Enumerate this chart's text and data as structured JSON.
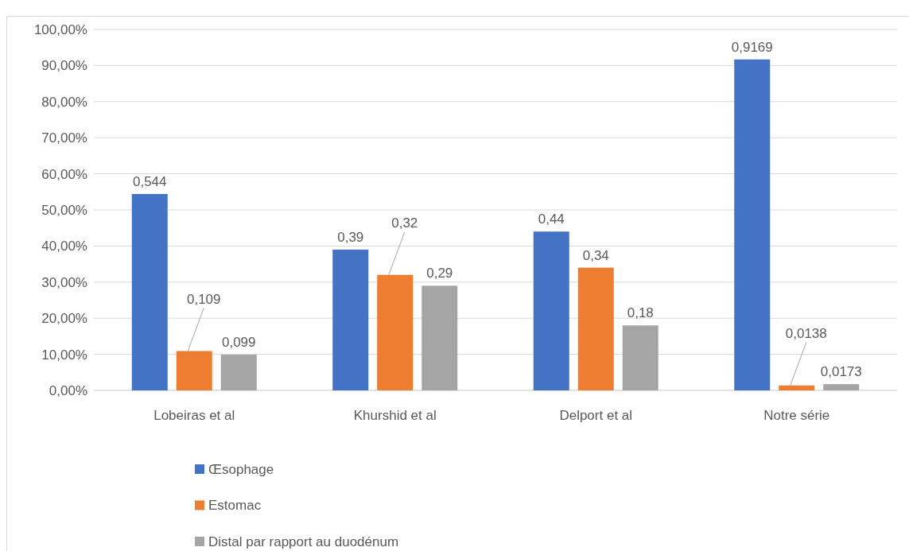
{
  "chart_data": {
    "type": "bar",
    "categories": [
      "Lobeiras et al",
      "Khurshid et al",
      "Delport et al",
      "Notre série"
    ],
    "series": [
      {
        "name": "Œsophage",
        "color": "#4472c4",
        "values": [
          0.544,
          0.39,
          0.44,
          0.9169
        ],
        "value_labels": [
          "0,544",
          "0,39",
          "0,44",
          "0,9169"
        ]
      },
      {
        "name": "Estomac",
        "color": "#ed7d31",
        "values": [
          0.109,
          0.32,
          0.34,
          0.0138
        ],
        "value_labels": [
          "0,109",
          "0,32",
          "0,34",
          "0,0138"
        ]
      },
      {
        "name": "Distal par rapport au duodénum",
        "color": "#a5a5a5",
        "values": [
          0.099,
          0.29,
          0.18,
          0.0173
        ],
        "value_labels": [
          "0,099",
          "0,29",
          "0,18",
          "0,0173"
        ]
      }
    ],
    "ylim": [
      0,
      1
    ],
    "yticks": [
      {
        "value": 0,
        "label": "0,00%"
      },
      {
        "value": 0.1,
        "label": "10,00%"
      },
      {
        "value": 0.2,
        "label": "20,00%"
      },
      {
        "value": 0.3,
        "label": "30,00%"
      },
      {
        "value": 0.4,
        "label": "40,00%"
      },
      {
        "value": 0.5,
        "label": "50,00%"
      },
      {
        "value": 0.6,
        "label": "60,00%"
      },
      {
        "value": 0.7,
        "label": "70,00%"
      },
      {
        "value": 0.8,
        "label": "80,00%"
      },
      {
        "value": 0.9,
        "label": "90,00%"
      },
      {
        "value": 1,
        "label": "100,00%"
      }
    ],
    "grid": "y",
    "legend": "bottom"
  }
}
